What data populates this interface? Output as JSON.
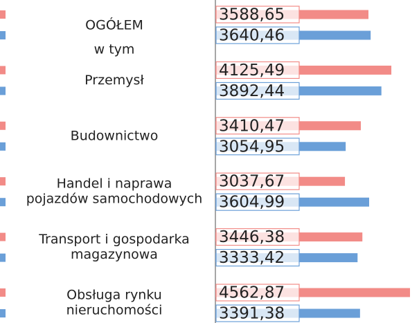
{
  "chart_data": {
    "type": "bar",
    "orientation": "horizontal",
    "categories": [
      [
        "OGÓŁEM"
      ],
      [
        "Przemysł"
      ],
      [
        "Budownictwo"
      ],
      [
        "Handel i naprawa",
        "pojazdów samochodowych"
      ],
      [
        "Transport i gospodarka",
        "magazynowa"
      ],
      [
        "Obsługa rynku",
        "nieruchomości"
      ]
    ],
    "annotation": "w tym",
    "series": [
      {
        "color": "#f28b87",
        "values": [
          3588.65,
          4125.49,
          3410.47,
          3037.67,
          3446.38,
          4562.87
        ],
        "value_labels": [
          "3588,65",
          "4125,49",
          "3410,47",
          "3037,67",
          "3446,38",
          "4562,87"
        ]
      },
      {
        "color": "#6a9fd8",
        "values": [
          3640.46,
          3892.44,
          3054.95,
          3604.99,
          3333.42,
          3391.38
        ],
        "value_labels": [
          "3640,46",
          "3892,44",
          "3054,95",
          "3604,99",
          "3333,42",
          "3391,38"
        ]
      }
    ]
  }
}
